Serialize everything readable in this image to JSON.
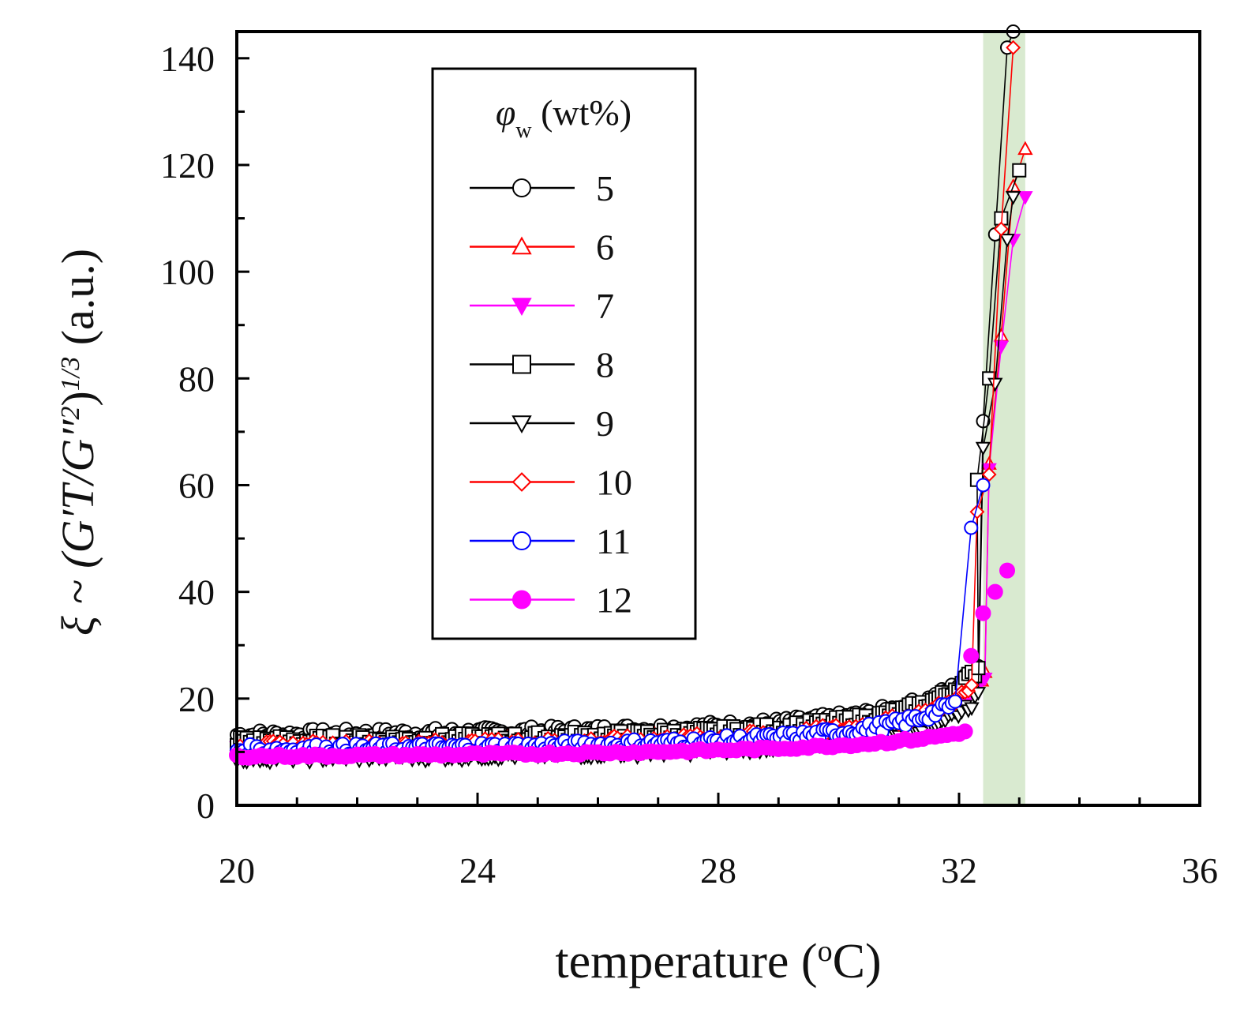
{
  "chart_data": {
    "type": "scatter",
    "title": "",
    "xlabel": "temperature (°C)",
    "xlabel_parts": {
      "prefix": "temperature (",
      "sup": "o",
      "suffix": "C)"
    },
    "ylabel": "ξ ~ (G′T/G″²)^1/3 (a.u.)",
    "ylabel_parts": {
      "symbol": "ξ",
      "tilde": " ~ (G′T/G″",
      "sq": "2",
      "close": ")",
      "exp": "1/3",
      "unit": " (a.u.)"
    },
    "xlim": [
      20,
      36
    ],
    "ylim": [
      0,
      145
    ],
    "x_ticks": [
      20,
      24,
      28,
      32,
      36
    ],
    "x_tick_labels": [
      "20",
      "24",
      "28",
      "32",
      "36"
    ],
    "y_ticks": [
      0,
      20,
      40,
      60,
      80,
      100,
      120,
      140
    ],
    "y_tick_labels": [
      "0",
      "20",
      "40",
      "60",
      "80",
      "100",
      "120",
      "140"
    ],
    "highlight_band": {
      "x_range": [
        32.4,
        33.1
      ],
      "color": "#d9ead0"
    },
    "legend": {
      "title_symbol": "φ",
      "title_sub": "w",
      "title_suffix": " (wt%)",
      "placement": "top-center"
    },
    "series": [
      {
        "name": "5",
        "color": "#000000",
        "marker": "circle",
        "filled": false,
        "base": 13.2,
        "tc": 33.35,
        "amp": 12.0,
        "end": 33.0,
        "tail": [
          [
            32.4,
            72
          ],
          [
            32.6,
            107
          ],
          [
            32.8,
            142
          ],
          [
            32.9,
            145
          ]
        ]
      },
      {
        "name": "6",
        "color": "#ff0000",
        "marker": "triangle-up",
        "filled": false,
        "base": 11.4,
        "tc": 33.6,
        "amp": 14.0,
        "end": 33.1,
        "tail": [
          [
            32.5,
            64
          ],
          [
            32.7,
            88
          ],
          [
            32.9,
            116
          ],
          [
            33.1,
            123
          ]
        ]
      },
      {
        "name": "7",
        "color": "#ff00ff",
        "marker": "triangle-down",
        "filled": true,
        "base": 10.6,
        "tc": 33.55,
        "amp": 13.0,
        "end": 33.1,
        "tail": [
          [
            32.5,
            63
          ],
          [
            32.7,
            86
          ],
          [
            32.9,
            106
          ],
          [
            33.1,
            114
          ]
        ]
      },
      {
        "name": "8",
        "color": "#000000",
        "marker": "square",
        "filled": false,
        "base": 12.0,
        "tc": 33.4,
        "amp": 13.5,
        "end": 33.0,
        "tail": [
          [
            32.3,
            61
          ],
          [
            32.5,
            80
          ],
          [
            32.7,
            110
          ],
          [
            33.0,
            119
          ]
        ]
      },
      {
        "name": "9",
        "color": "#000000",
        "marker": "triangle-down",
        "filled": false,
        "base": 9.0,
        "tc": 33.5,
        "amp": 12.0,
        "end": 33.0,
        "tail": [
          [
            32.4,
            67
          ],
          [
            32.6,
            79
          ],
          [
            32.8,
            106
          ],
          [
            32.9,
            114
          ]
        ]
      },
      {
        "name": "10",
        "color": "#ff0000",
        "marker": "diamond",
        "filled": false,
        "base": 11.0,
        "tc": 33.5,
        "amp": 13.0,
        "end": 32.9,
        "tail": [
          [
            32.3,
            55
          ],
          [
            32.5,
            62
          ],
          [
            32.7,
            108
          ],
          [
            32.9,
            142
          ]
        ]
      },
      {
        "name": "11",
        "color": "#0000ff",
        "marker": "circle",
        "filled": false,
        "base": 10.4,
        "tc": 33.45,
        "amp": 12.5,
        "end": 32.6,
        "tail": [
          [
            32.2,
            52
          ],
          [
            32.4,
            60
          ]
        ]
      },
      {
        "name": "12",
        "color": "#ff00ff",
        "marker": "circle",
        "filled": true,
        "base": 9.2,
        "tc": 34.5,
        "amp": 11.0,
        "end": 32.8,
        "tail": [
          [
            32.2,
            28
          ],
          [
            32.4,
            36
          ],
          [
            32.6,
            40
          ],
          [
            32.8,
            44
          ]
        ]
      }
    ]
  }
}
